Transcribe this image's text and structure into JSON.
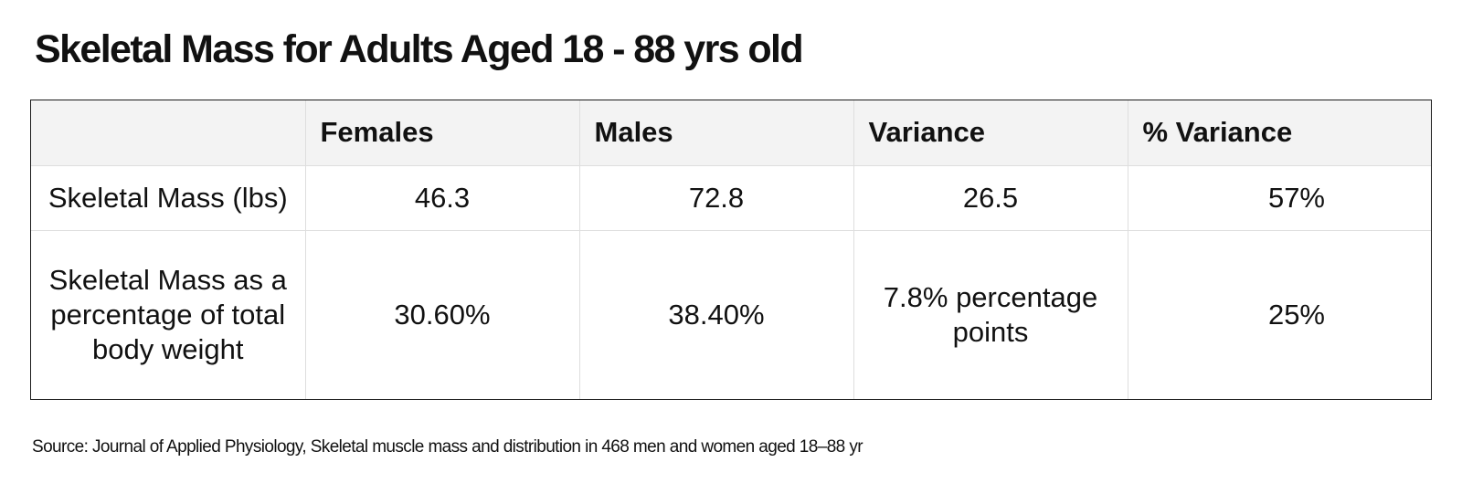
{
  "title": "Skeletal Mass for Adults Aged 18 - 88 yrs old",
  "table": {
    "headers": [
      "",
      "Females",
      "Males",
      "Variance",
      "% Variance"
    ],
    "rows": [
      {
        "label": "Skeletal Mass (lbs)",
        "females": "46.3",
        "males": "72.8",
        "variance": "26.5",
        "pct_variance": "57%"
      },
      {
        "label": "Skeletal Mass as a percentage of total body weight",
        "females": "30.60%",
        "males": "38.40%",
        "variance": "7.8% percentage points",
        "pct_variance": "25%"
      }
    ]
  },
  "source": "Source:  Journal of Applied Physiology, Skeletal muscle mass and distribution in 468 men and women aged 18–88 yr"
}
